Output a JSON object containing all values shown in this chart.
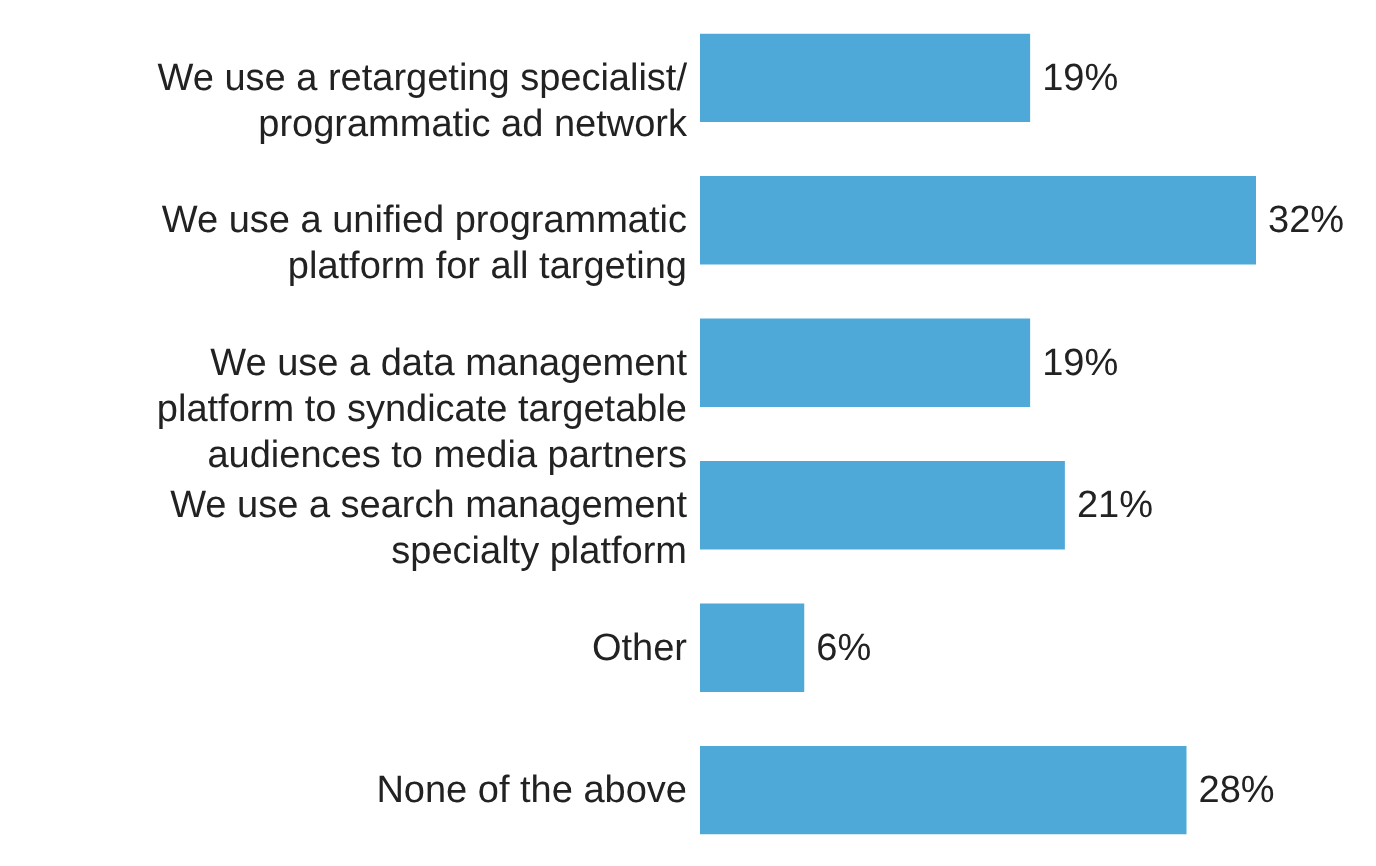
{
  "chart_data": {
    "type": "bar",
    "orientation": "horizontal",
    "categories": [
      "We use a retargeting specialist/ programmatic ad network",
      "We use a unified programmatic platform for all targeting",
      "We use a data management platform to syndicate targetable audiences to media partners",
      "We use a search management specialty platform",
      "Other",
      "None of the above"
    ],
    "values": [
      19,
      32,
      19,
      21,
      6,
      28
    ],
    "value_labels": [
      "19%",
      "32%",
      "19%",
      "21%",
      "6%",
      "28%"
    ],
    "color": "#4fa9d8",
    "grid": false
  }
}
